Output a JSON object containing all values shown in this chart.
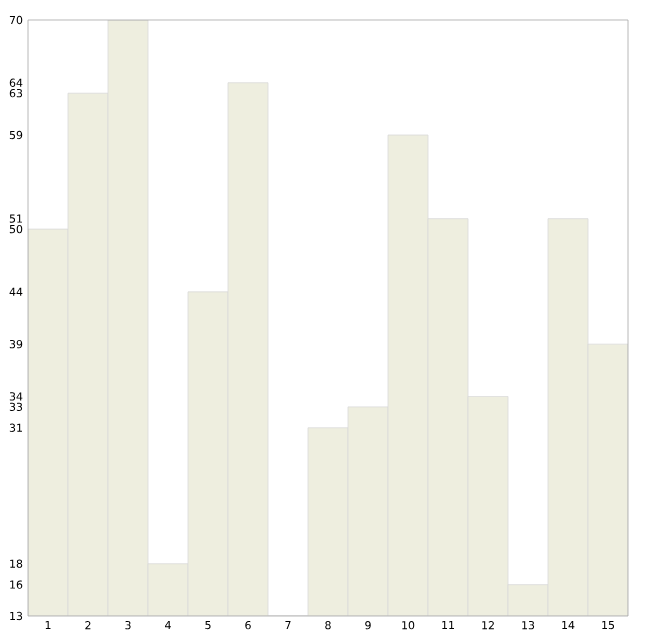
{
  "chart_data": {
    "type": "bar",
    "categories": [
      "1",
      "2",
      "3",
      "4",
      "5",
      "6",
      "7",
      "8",
      "9",
      "10",
      "11",
      "12",
      "13",
      "14",
      "15"
    ],
    "values": [
      50,
      63,
      70,
      18,
      44,
      64,
      13,
      31,
      33,
      59,
      51,
      34,
      16,
      51,
      39
    ],
    "color": "#eeeedf",
    "ylim": [
      13,
      70
    ],
    "yticks": [
      13,
      16,
      18,
      31,
      33,
      34,
      39,
      44,
      50,
      51,
      59,
      63,
      64,
      70
    ],
    "grid": false
  }
}
